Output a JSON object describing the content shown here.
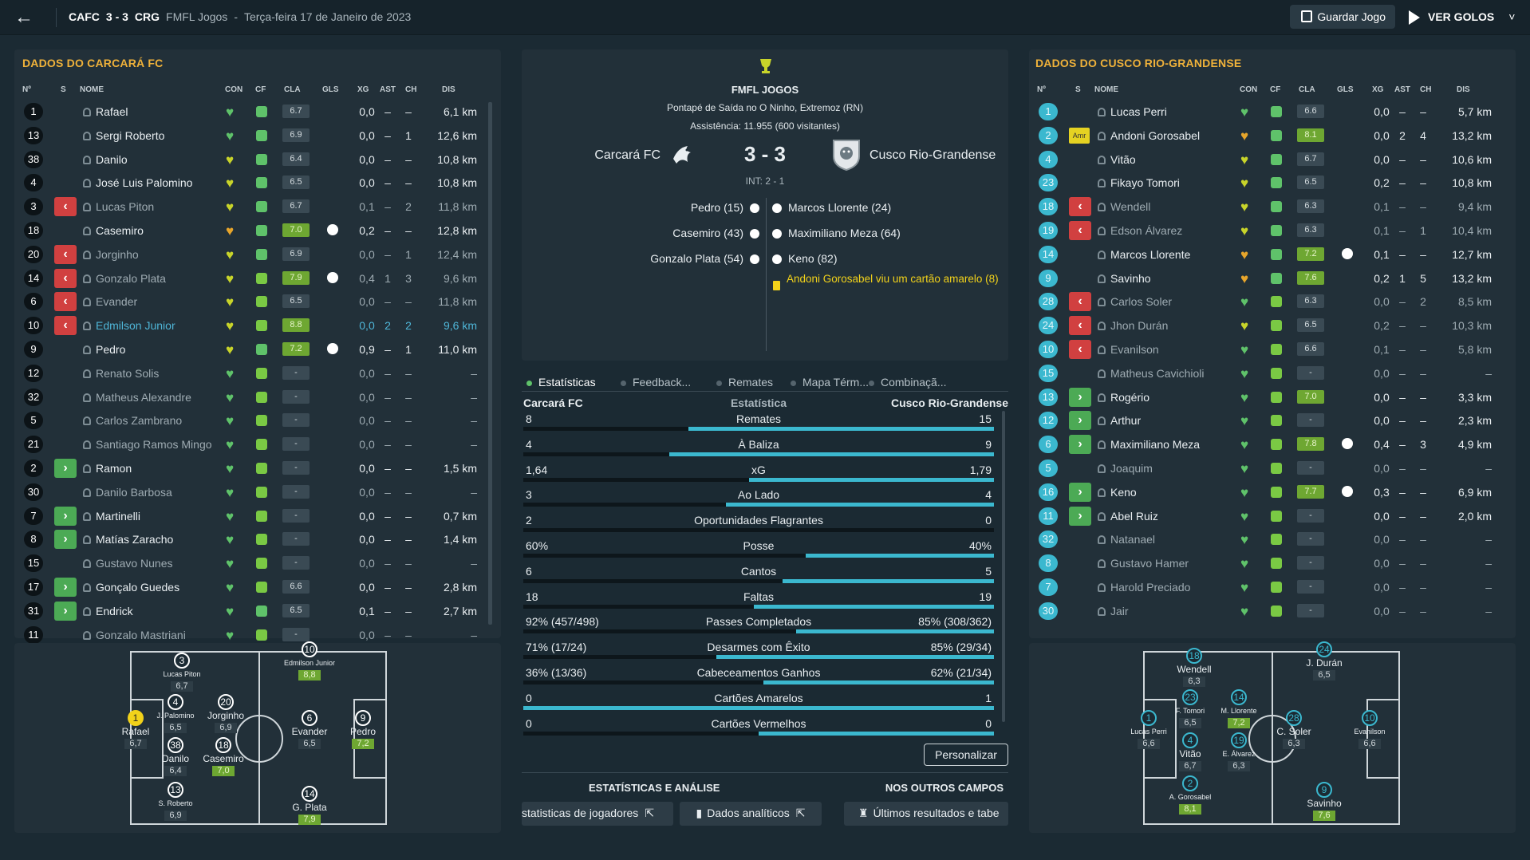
{
  "header": {
    "back": "←",
    "home_code": "CAFC",
    "score": "3 - 3",
    "away_code": "CRG",
    "competition": "FMFL Jogos",
    "dash": "-",
    "date": "Terça-feira 17 de Janeiro de 2023",
    "save": "Guardar Jogo",
    "goals": "VER GOLOS",
    "goals_caret": "˅"
  },
  "cols": {
    "n": "Nº",
    "s": "S",
    "nome": "NOME",
    "con": "CON",
    "cf": "CF",
    "cla": "CLA",
    "gls": "GLS",
    "xg": "XG",
    "ast": "AST",
    "ch": "CH",
    "dis": "DIS"
  },
  "left": {
    "title": "DADOS DO CARCARÁ FC",
    "rows": [
      {
        "n": "1",
        "sub": "",
        "name": "Rafael",
        "heart": "green",
        "cf": "green",
        "cla": "6.7",
        "g": "",
        "xg": "0,0",
        "ast": "–",
        "ch": "–",
        "dis": "6,1 km",
        "dim": false
      },
      {
        "n": "13",
        "sub": "",
        "name": "Sergi Roberto",
        "heart": "green",
        "cf": "green",
        "cla": "6.9",
        "g": "",
        "xg": "0,0",
        "ast": "–",
        "ch": "1",
        "dis": "12,6 km",
        "dim": false
      },
      {
        "n": "38",
        "sub": "",
        "name": "Danilo",
        "heart": "yellow",
        "cf": "green",
        "cla": "6.4",
        "g": "",
        "xg": "0,0",
        "ast": "–",
        "ch": "–",
        "dis": "10,8 km",
        "dim": false
      },
      {
        "n": "4",
        "sub": "",
        "name": "José Luis Palomino",
        "heart": "yellow",
        "cf": "green",
        "cla": "6.5",
        "g": "",
        "xg": "0,0",
        "ast": "–",
        "ch": "–",
        "dis": "10,8 km",
        "dim": false
      },
      {
        "n": "3",
        "sub": "out",
        "name": "Lucas Piton",
        "heart": "yellow",
        "cf": "green",
        "cla": "6.7",
        "g": "",
        "xg": "0,1",
        "ast": "–",
        "ch": "2",
        "dis": "11,8 km",
        "dim": true
      },
      {
        "n": "18",
        "sub": "",
        "name": "Casemiro",
        "heart": "orange",
        "cf": "green",
        "cla": "7.0",
        "g": "1",
        "xg": "0,2",
        "ast": "–",
        "ch": "–",
        "dis": "12,8 km",
        "dim": false
      },
      {
        "n": "20",
        "sub": "out",
        "name": "Jorginho",
        "heart": "yellow",
        "cf": "green",
        "cla": "6.9",
        "g": "",
        "xg": "0,0",
        "ast": "–",
        "ch": "1",
        "dis": "12,4 km",
        "dim": true
      },
      {
        "n": "14",
        "sub": "out",
        "name": "Gonzalo Plata",
        "heart": "yellow",
        "cf": "green2",
        "cla": "7.9",
        "g": "1",
        "xg": "0,4",
        "ast": "1",
        "ch": "3",
        "dis": "9,6 km",
        "dim": true
      },
      {
        "n": "6",
        "sub": "out",
        "name": "Evander",
        "heart": "yellow",
        "cf": "green2",
        "cla": "6.5",
        "g": "",
        "xg": "0,0",
        "ast": "–",
        "ch": "–",
        "dis": "11,8 km",
        "dim": true
      },
      {
        "n": "10",
        "sub": "out",
        "name": "Edmilson Junior",
        "heart": "yellow",
        "cf": "green2",
        "cla": "8.8",
        "g": "",
        "xg": "0,0",
        "ast": "2",
        "ch": "2",
        "dis": "9,6 km",
        "dim": false,
        "hl": true
      },
      {
        "n": "9",
        "sub": "",
        "name": "Pedro",
        "heart": "yellow",
        "cf": "green",
        "cla": "7.2",
        "g": "1",
        "xg": "0,9",
        "ast": "–",
        "ch": "1",
        "dis": "11,0 km",
        "dim": false
      },
      {
        "n": "12",
        "sub": "",
        "name": "Renato Solis",
        "heart": "green",
        "cf": "green2",
        "cla": "-",
        "g": "",
        "xg": "0,0",
        "ast": "–",
        "ch": "–",
        "dis": "–",
        "dim": true
      },
      {
        "n": "32",
        "sub": "",
        "name": "Matheus Alexandre",
        "heart": "green",
        "cf": "green2",
        "cla": "-",
        "g": "",
        "xg": "0,0",
        "ast": "–",
        "ch": "–",
        "dis": "–",
        "dim": true
      },
      {
        "n": "5",
        "sub": "",
        "name": "Carlos Zambrano",
        "heart": "green",
        "cf": "green2",
        "cla": "-",
        "g": "",
        "xg": "0,0",
        "ast": "–",
        "ch": "–",
        "dis": "–",
        "dim": true
      },
      {
        "n": "21",
        "sub": "",
        "name": "Santiago Ramos Mingo",
        "heart": "green",
        "cf": "green2",
        "cla": "-",
        "g": "",
        "xg": "0,0",
        "ast": "–",
        "ch": "–",
        "dis": "–",
        "dim": true
      },
      {
        "n": "2",
        "sub": "in",
        "name": "Ramon",
        "heart": "green",
        "cf": "green2",
        "cla": "-",
        "g": "",
        "xg": "0,0",
        "ast": "–",
        "ch": "–",
        "dis": "1,5 km",
        "dim": false
      },
      {
        "n": "30",
        "sub": "",
        "name": "Danilo Barbosa",
        "heart": "green",
        "cf": "green2",
        "cla": "-",
        "g": "",
        "xg": "0,0",
        "ast": "–",
        "ch": "–",
        "dis": "–",
        "dim": true
      },
      {
        "n": "7",
        "sub": "in",
        "name": "Martinelli",
        "heart": "green",
        "cf": "green2",
        "cla": "-",
        "g": "",
        "xg": "0,0",
        "ast": "–",
        "ch": "–",
        "dis": "0,7 km",
        "dim": false
      },
      {
        "n": "8",
        "sub": "in",
        "name": "Matías Zaracho",
        "heart": "green",
        "cf": "green2",
        "cla": "-",
        "g": "",
        "xg": "0,0",
        "ast": "–",
        "ch": "–",
        "dis": "1,4 km",
        "dim": false
      },
      {
        "n": "15",
        "sub": "",
        "name": "Gustavo Nunes",
        "heart": "green",
        "cf": "green2",
        "cla": "-",
        "g": "",
        "xg": "0,0",
        "ast": "–",
        "ch": "–",
        "dis": "–",
        "dim": true
      },
      {
        "n": "17",
        "sub": "in",
        "name": "Gonçalo Guedes",
        "heart": "green",
        "cf": "green2",
        "cla": "6.6",
        "g": "",
        "xg": "0,0",
        "ast": "–",
        "ch": "–",
        "dis": "2,8 km",
        "dim": false
      },
      {
        "n": "31",
        "sub": "in",
        "name": "Endrick",
        "heart": "green",
        "cf": "green",
        "cla": "6.5",
        "g": "",
        "xg": "0,1",
        "ast": "–",
        "ch": "–",
        "dis": "2,7 km",
        "dim": false
      },
      {
        "n": "11",
        "sub": "",
        "name": "Gonzalo Mastriani",
        "heart": "green",
        "cf": "green2",
        "cla": "-",
        "g": "",
        "xg": "0,0",
        "ast": "–",
        "ch": "–",
        "dis": "–",
        "dim": true
      }
    ]
  },
  "right": {
    "title": "DADOS DO CUSCO RIO-GRANDENSE",
    "rows": [
      {
        "n": "1",
        "sub": "",
        "name": "Lucas Perri",
        "heart": "green",
        "cf": "green",
        "cla": "6.6",
        "g": "",
        "xg": "0,0",
        "ast": "–",
        "ch": "–",
        "dis": "5,7 km",
        "dim": false
      },
      {
        "n": "2",
        "sub": "amr",
        "name": "Andoni Gorosabel",
        "heart": "orange",
        "cf": "green",
        "cla": "8.1",
        "g": "",
        "xg": "0,0",
        "ast": "2",
        "ch": "4",
        "dis": "13,2 km",
        "dim": false
      },
      {
        "n": "4",
        "sub": "",
        "name": "Vitão",
        "heart": "yellow",
        "cf": "green",
        "cla": "6.7",
        "g": "",
        "xg": "0,0",
        "ast": "–",
        "ch": "–",
        "dis": "10,6 km",
        "dim": false
      },
      {
        "n": "23",
        "sub": "",
        "name": "Fikayo Tomori",
        "heart": "yellow",
        "cf": "green",
        "cla": "6.5",
        "g": "",
        "xg": "0,2",
        "ast": "–",
        "ch": "–",
        "dis": "10,8 km",
        "dim": false
      },
      {
        "n": "18",
        "sub": "out",
        "name": "Wendell",
        "heart": "yellow",
        "cf": "green",
        "cla": "6.3",
        "g": "",
        "xg": "0,1",
        "ast": "–",
        "ch": "–",
        "dis": "9,4 km",
        "dim": true
      },
      {
        "n": "19",
        "sub": "out",
        "name": "Edson Álvarez",
        "heart": "yellow",
        "cf": "green",
        "cla": "6.3",
        "g": "",
        "xg": "0,1",
        "ast": "–",
        "ch": "1",
        "dis": "10,4 km",
        "dim": true
      },
      {
        "n": "14",
        "sub": "",
        "name": "Marcos Llorente",
        "heart": "orange",
        "cf": "green",
        "cla": "7.2",
        "g": "1",
        "xg": "0,1",
        "ast": "–",
        "ch": "–",
        "dis": "12,7 km",
        "dim": false
      },
      {
        "n": "9",
        "sub": "",
        "name": "Savinho",
        "heart": "orange",
        "cf": "green",
        "cla": "7.6",
        "g": "",
        "xg": "0,2",
        "ast": "1",
        "ch": "5",
        "dis": "13,2 km",
        "dim": false
      },
      {
        "n": "28",
        "sub": "out",
        "name": "Carlos Soler",
        "heart": "green",
        "cf": "green2",
        "cla": "6.3",
        "g": "",
        "xg": "0,0",
        "ast": "–",
        "ch": "2",
        "dis": "8,5 km",
        "dim": true
      },
      {
        "n": "24",
        "sub": "out",
        "name": "Jhon Durán",
        "heart": "yellow",
        "cf": "green2",
        "cla": "6.5",
        "g": "",
        "xg": "0,2",
        "ast": "–",
        "ch": "–",
        "dis": "10,3 km",
        "dim": true
      },
      {
        "n": "10",
        "sub": "out",
        "name": "Evanilson",
        "heart": "green",
        "cf": "green2",
        "cla": "6.6",
        "g": "",
        "xg": "0,1",
        "ast": "–",
        "ch": "–",
        "dis": "5,8 km",
        "dim": true
      },
      {
        "n": "15",
        "sub": "",
        "name": "Matheus Cavichioli",
        "heart": "green",
        "cf": "green2",
        "cla": "-",
        "g": "",
        "xg": "0,0",
        "ast": "–",
        "ch": "–",
        "dis": "–",
        "dim": true
      },
      {
        "n": "13",
        "sub": "in",
        "name": "Rogério",
        "heart": "green",
        "cf": "green2",
        "cla": "7.0",
        "g": "",
        "xg": "0,0",
        "ast": "–",
        "ch": "–",
        "dis": "3,3 km",
        "dim": false
      },
      {
        "n": "12",
        "sub": "in",
        "name": "Arthur",
        "heart": "green",
        "cf": "green2",
        "cla": "-",
        "g": "",
        "xg": "0,0",
        "ast": "–",
        "ch": "–",
        "dis": "2,3 km",
        "dim": false
      },
      {
        "n": "6",
        "sub": "in",
        "name": "Maximiliano Meza",
        "heart": "green",
        "cf": "green2",
        "cla": "7.8",
        "g": "1",
        "xg": "0,4",
        "ast": "–",
        "ch": "3",
        "dis": "4,9 km",
        "dim": false
      },
      {
        "n": "5",
        "sub": "",
        "name": "Joaquim",
        "heart": "green",
        "cf": "green2",
        "cla": "-",
        "g": "",
        "xg": "0,0",
        "ast": "–",
        "ch": "–",
        "dis": "–",
        "dim": true
      },
      {
        "n": "16",
        "sub": "in",
        "name": "Keno",
        "heart": "green",
        "cf": "green2",
        "cla": "7.7",
        "g": "1",
        "xg": "0,3",
        "ast": "–",
        "ch": "–",
        "dis": "6,9 km",
        "dim": false
      },
      {
        "n": "11",
        "sub": "in",
        "name": "Abel Ruiz",
        "heart": "green",
        "cf": "green2",
        "cla": "-",
        "g": "",
        "xg": "0,0",
        "ast": "–",
        "ch": "–",
        "dis": "2,0 km",
        "dim": false
      },
      {
        "n": "32",
        "sub": "",
        "name": "Natanael",
        "heart": "green",
        "cf": "green2",
        "cla": "-",
        "g": "",
        "xg": "0,0",
        "ast": "–",
        "ch": "–",
        "dis": "–",
        "dim": true
      },
      {
        "n": "8",
        "sub": "",
        "name": "Gustavo Hamer",
        "heart": "green",
        "cf": "green2",
        "cla": "-",
        "g": "",
        "xg": "0,0",
        "ast": "–",
        "ch": "–",
        "dis": "–",
        "dim": true
      },
      {
        "n": "7",
        "sub": "",
        "name": "Harold Preciado",
        "heart": "green",
        "cf": "green2",
        "cla": "-",
        "g": "",
        "xg": "0,0",
        "ast": "–",
        "ch": "–",
        "dis": "–",
        "dim": true
      },
      {
        "n": "30",
        "sub": "",
        "name": "Jair",
        "heart": "green",
        "cf": "green2",
        "cla": "-",
        "g": "",
        "xg": "0,0",
        "ast": "–",
        "ch": "–",
        "dis": "–",
        "dim": true
      }
    ]
  },
  "match": {
    "competition": "FMFL JOGOS",
    "venue": "Pontapé de Saída no O Ninho, Extremoz (RN)",
    "attendance": "Assistência: 11.955 (600 visitantes)",
    "home": "Carcará FC",
    "away": "Cusco Rio-Grandense",
    "score": "3 - 3",
    "ht": "INT: 2 - 1",
    "home_goals": [
      "Pedro (15)",
      "Casemiro (43)",
      "Gonzalo Plata (54)"
    ],
    "away_goals": [
      "Marcos Llorente (24)",
      "Maximiliano Meza (64)",
      "Keno (82)"
    ],
    "card": "Andoni Gorosabel viu um cartão amarelo (8)"
  },
  "tabs": [
    "Estatísticas",
    "Feedback...",
    "Remates",
    "Mapa Térm...",
    "Combinaçã..."
  ],
  "stats_header": {
    "home": "Carcará FC",
    "mid": "Estatística",
    "away": "Cusco Rio-Grandense"
  },
  "stats": [
    {
      "l": "8",
      "label": "Remates",
      "r": "15",
      "share": 0.65
    },
    {
      "l": "4",
      "label": "À Baliza",
      "r": "9",
      "share": 0.69
    },
    {
      "l": "1,64",
      "label": "xG",
      "r": "1,79",
      "share": 0.52
    },
    {
      "l": "3",
      "label": "Ao Lado",
      "r": "4",
      "share": 0.57
    },
    {
      "l": "2",
      "label": "Oportunidades Flagrantes",
      "r": "0",
      "share": 0.0
    },
    {
      "l": "60%",
      "label": "Posse",
      "r": "40%",
      "share": 0.4
    },
    {
      "l": "6",
      "label": "Cantos",
      "r": "5",
      "share": 0.45
    },
    {
      "l": "18",
      "label": "Faltas",
      "r": "19",
      "share": 0.51
    },
    {
      "l": "92% (457/498)",
      "label": "Passes Completados",
      "r": "85% (308/362)",
      "share": 0.42
    },
    {
      "l": "71% (17/24)",
      "label": "Desarmes com Êxito",
      "r": "85% (29/34)",
      "share": 0.59
    },
    {
      "l": "36% (13/36)",
      "label": "Cabeceamentos Ganhos",
      "r": "62% (21/34)",
      "share": 0.49
    },
    {
      "l": "0",
      "label": "Cartões Amarelos",
      "r": "1",
      "share": 1.0
    },
    {
      "l": "0",
      "label": "Cartões Vermelhos",
      "r": "0",
      "share": 0.5
    }
  ],
  "customize": "Personalizar",
  "bottom": {
    "analysis": "ESTATÍSTICAS E ANÁLISE",
    "other": "NOS OUTROS CAMPOS",
    "btn1": "statisticas de jogadores",
    "btn2": "Dados analíticos",
    "btn3": "Últimos resultados e tabe"
  },
  "pitch_left": [
    {
      "n": "1",
      "name": "Rafael",
      "r": "6,7",
      "g": false,
      "gk": true
    },
    {
      "n": "3",
      "name": "Lucas Piton",
      "r": "6,7",
      "g": false,
      "small": true
    },
    {
      "n": "4",
      "name": "J. Palomino",
      "r": "6,5",
      "g": false,
      "small": true
    },
    {
      "n": "20",
      "name": "Jorginho",
      "r": "6,9",
      "g": false
    },
    {
      "n": "38",
      "name": "Danilo",
      "r": "6,4",
      "g": false
    },
    {
      "n": "18",
      "name": "Casemiro",
      "r": "7,0",
      "g": true
    },
    {
      "n": "13",
      "name": "S. Roberto",
      "r": "6,9",
      "g": false,
      "small": true
    },
    {
      "n": "10",
      "name": "Edmilson Junior",
      "r": "8,8",
      "g": true,
      "small": true
    },
    {
      "n": "6",
      "name": "Evander",
      "r": "6,5",
      "g": false
    },
    {
      "n": "9",
      "name": "Pedro",
      "r": "7,2",
      "g": true
    },
    {
      "n": "14",
      "name": "G. Plata",
      "r": "7,9",
      "g": true
    }
  ],
  "pitch_right": [
    {
      "n": "18",
      "name": "Wendell",
      "r": "6,3",
      "g": false
    },
    {
      "n": "24",
      "name": "J. Durán",
      "r": "6,5",
      "g": false
    },
    {
      "n": "23",
      "name": "F. Tomori",
      "r": "6,5",
      "g": false,
      "small": true
    },
    {
      "n": "14",
      "name": "M. Llorente",
      "r": "7,2",
      "g": true,
      "small": true
    },
    {
      "n": "1",
      "name": "Lucas Perri",
      "r": "6,6",
      "g": false,
      "small": true
    },
    {
      "n": "28",
      "name": "C. Soler",
      "r": "6,3",
      "g": false
    },
    {
      "n": "10",
      "name": "Evanilson",
      "r": "6,6",
      "g": false,
      "small": true
    },
    {
      "n": "4",
      "name": "Vitão",
      "r": "6,7",
      "g": false
    },
    {
      "n": "19",
      "name": "E. Álvarez",
      "r": "6,3",
      "g": false,
      "small": true
    },
    {
      "n": "2",
      "name": "A. Gorosabel",
      "r": "8,1",
      "g": true,
      "small": true
    },
    {
      "n": "9",
      "name": "Savinho",
      "r": "7,6",
      "g": true
    }
  ],
  "colors": {
    "accent": "#f0b23a",
    "bar": "#3bb8cf",
    "green": "#5fc26a",
    "red": "#d14040"
  }
}
